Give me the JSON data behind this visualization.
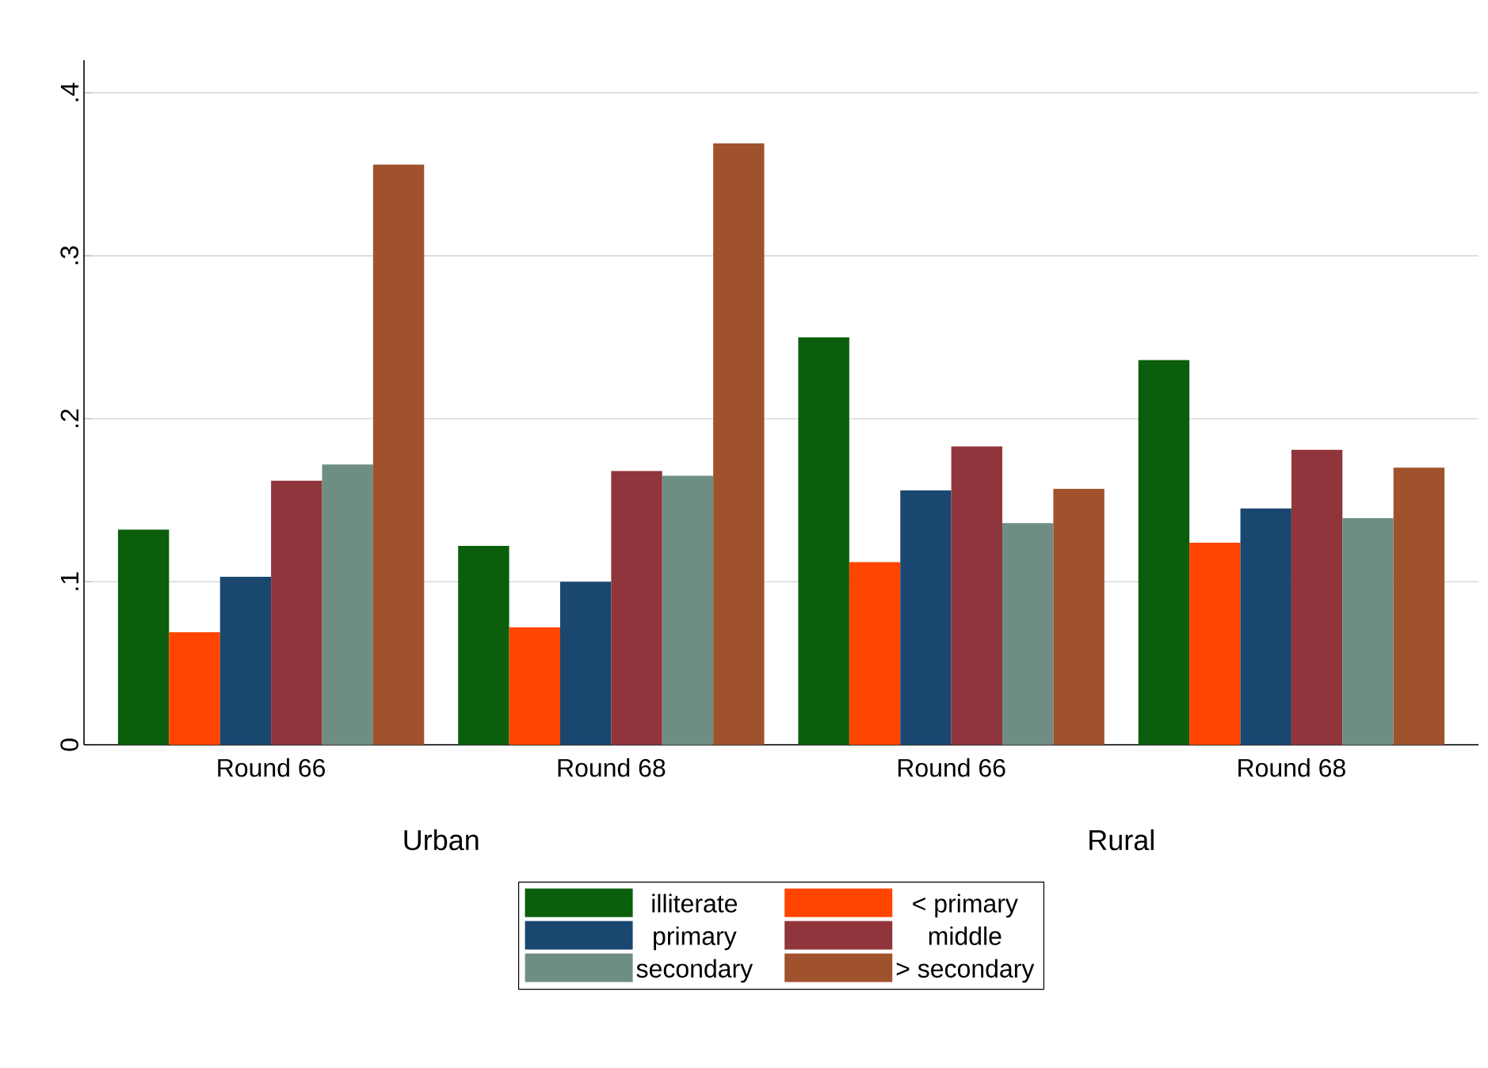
{
  "chart_data": {
    "type": "bar",
    "categories": [
      "Round 66",
      "Round 68",
      "Round 66",
      "Round 68"
    ],
    "series": [
      {
        "name": "illiterate",
        "color": "#0b5e0b",
        "values": [
          0.132,
          0.122,
          0.25,
          0.236
        ]
      },
      {
        "name": "< primary",
        "color": "#ff4500",
        "values": [
          0.069,
          0.072,
          0.112,
          0.124
        ]
      },
      {
        "name": "primary",
        "color": "#1a476f",
        "values": [
          0.103,
          0.1,
          0.156,
          0.145
        ]
      },
      {
        "name": "middle",
        "color": "#90353b",
        "values": [
          0.162,
          0.168,
          0.183,
          0.181
        ]
      },
      {
        "name": "secondary",
        "color": "#6e8e84",
        "values": [
          0.172,
          0.165,
          0.136,
          0.139
        ]
      },
      {
        "name": "> secondary",
        "color": "#a0522d",
        "values": [
          0.356,
          0.369,
          0.157,
          0.17
        ]
      }
    ],
    "ylim": [
      0,
      0.42
    ],
    "yticks": [
      {
        "value": 0,
        "label": "0"
      },
      {
        "value": 0.1,
        "label": ".1"
      },
      {
        "value": 0.2,
        "label": ".2"
      },
      {
        "value": 0.3,
        "label": ".3"
      },
      {
        "value": 0.4,
        "label": ".4"
      }
    ],
    "grid": "y",
    "legend": "bottom",
    "annotations": [
      "Urban",
      "Rural"
    ]
  }
}
